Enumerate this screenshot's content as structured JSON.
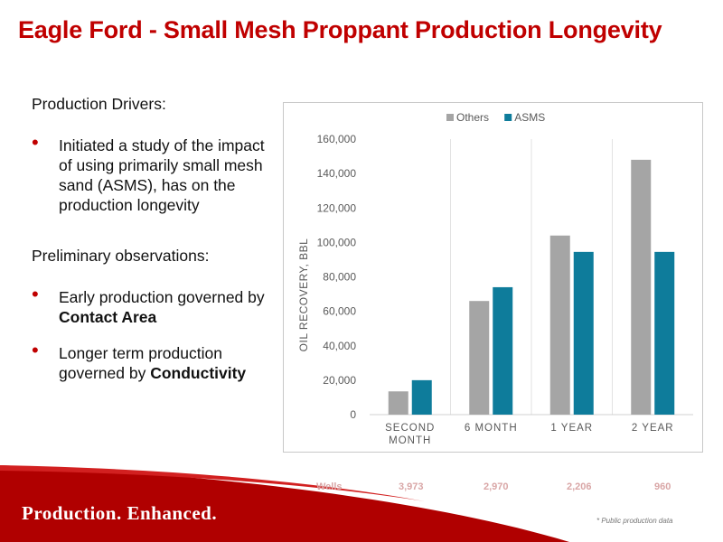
{
  "title": "Eagle Ford - Small Mesh Proppant Production Longevity",
  "left": {
    "heading1": "Production Drivers:",
    "bullet1": "Initiated a study of the impact of using primarily small mesh sand (ASMS), has on the production longevity",
    "heading2": "Preliminary observations:",
    "bullet2_text": "Early production governed by ",
    "bullet2_bold": "Contact Area",
    "bullet3_text": "Longer term production governed by ",
    "bullet3_bold": "Conductivity",
    "bullet_glyph": "•"
  },
  "chart_data": {
    "type": "bar",
    "categories": [
      "SECOND MONTH",
      "6 MONTH",
      "1 YEAR",
      "2 YEAR"
    ],
    "category_lines": [
      [
        "SECOND",
        "MONTH"
      ],
      [
        "6 MONTH"
      ],
      [
        "1 YEAR"
      ],
      [
        "2 YEAR"
      ]
    ],
    "series": [
      {
        "name": "Others",
        "values": [
          13500,
          66000,
          104000,
          148000
        ],
        "color": "#a5a5a5"
      },
      {
        "name": "ASMS",
        "values": [
          20000,
          74000,
          94500,
          94500
        ],
        "color": "#0e7c9b"
      }
    ],
    "ylabel": "OIL RECOVERY, BBL",
    "ylim": [
      0,
      160000
    ],
    "yticks": [
      "0",
      "20,000",
      "40,000",
      "60,000",
      "80,000",
      "100,000",
      "120,000",
      "140,000",
      "160,000"
    ],
    "grid": "vertical",
    "legend": "top"
  },
  "wells": {
    "label": "Wells",
    "values": [
      "3,973",
      "2,970",
      "2,206",
      "960"
    ]
  },
  "footer": {
    "tagline": "Production. Enhanced.",
    "note": "* Public production data"
  },
  "colors": {
    "brand_red": "#c00000",
    "others_gray": "#a5a5a5",
    "asms_teal": "#0e7c9b"
  }
}
